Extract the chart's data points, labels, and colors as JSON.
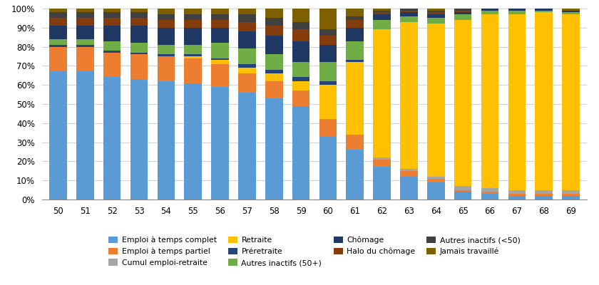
{
  "ages": [
    50,
    51,
    52,
    53,
    54,
    55,
    56,
    57,
    58,
    59,
    60,
    61,
    62,
    63,
    64,
    65,
    66,
    67,
    68,
    69
  ],
  "series": {
    "Emploi à temps complet": [
      67,
      67,
      64,
      63,
      62,
      61,
      59,
      56,
      53,
      49,
      33,
      26,
      17,
      12,
      9,
      4,
      3,
      2,
      2,
      2
    ],
    "Emploi à temps partiel": [
      13,
      13,
      13,
      13,
      13,
      13,
      12,
      10,
      9,
      8,
      9,
      8,
      4,
      3,
      2,
      1,
      1,
      1,
      1,
      1
    ],
    "Cumul emploi-retraite": [
      0,
      0,
      0,
      0,
      0,
      0,
      0,
      0,
      0,
      0,
      0,
      0,
      1,
      1,
      1,
      2,
      2,
      2,
      2,
      2
    ],
    "Retraite": [
      0,
      0,
      0,
      0,
      0,
      1,
      2,
      3,
      4,
      5,
      18,
      38,
      67,
      77,
      80,
      87,
      91,
      92,
      93,
      92
    ],
    "Préretraite": [
      1,
      1,
      1,
      1,
      1,
      1,
      1,
      2,
      2,
      2,
      2,
      1,
      0,
      0,
      0,
      0,
      0,
      0,
      0,
      0
    ],
    "Autres inactifs (50+)": [
      3,
      3,
      5,
      5,
      5,
      5,
      8,
      8,
      8,
      8,
      10,
      10,
      5,
      3,
      3,
      3,
      2,
      2,
      1,
      1
    ],
    "Chômage": [
      7,
      7,
      8,
      9,
      9,
      9,
      8,
      9,
      10,
      11,
      9,
      7,
      3,
      2,
      2,
      1,
      1,
      1,
      1,
      1
    ],
    "Halo du chômage": [
      4,
      4,
      4,
      4,
      4,
      4,
      4,
      5,
      5,
      6,
      5,
      4,
      1,
      1,
      1,
      1,
      0,
      0,
      0,
      0
    ],
    "Autres inactifs (<50)": [
      3,
      3,
      3,
      3,
      3,
      3,
      3,
      4,
      4,
      4,
      3,
      2,
      1,
      1,
      1,
      1,
      0,
      0,
      0,
      0
    ],
    "Jamais travaillé": [
      2,
      2,
      2,
      2,
      3,
      3,
      3,
      3,
      5,
      7,
      11,
      4,
      1,
      0,
      1,
      0,
      0,
      0,
      0,
      1
    ]
  },
  "colors": {
    "Emploi à temps complet": "#5B9BD5",
    "Emploi à temps partiel": "#ED7D31",
    "Cumul emploi-retraite": "#A5A5A5",
    "Retraite": "#FFC000",
    "Préretraite": "#264478",
    "Autres inactifs (50+)": "#70AD47",
    "Chômage": "#203864",
    "Halo du chômage": "#843C0C",
    "Autres inactifs (<50)": "#404040",
    "Jamais travaillé": "#7F6000"
  },
  "legend_order": [
    "Emploi à temps complet",
    "Emploi à temps partiel",
    "Cumul emploi-retraite",
    "Retraite",
    "Préretraite",
    "Autres inactifs (50+)",
    "Chômage",
    "Halo du chômage",
    "Autres inactifs (<50)",
    "Jamais travaillé"
  ],
  "ytick_labels": [
    "0%",
    "10%",
    "20%",
    "30%",
    "40%",
    "50%",
    "60%",
    "70%",
    "80%",
    "90%",
    "100%"
  ],
  "ylim": [
    0,
    100
  ],
  "figsize": [
    8.4,
    4.0
  ],
  "dpi": 100
}
